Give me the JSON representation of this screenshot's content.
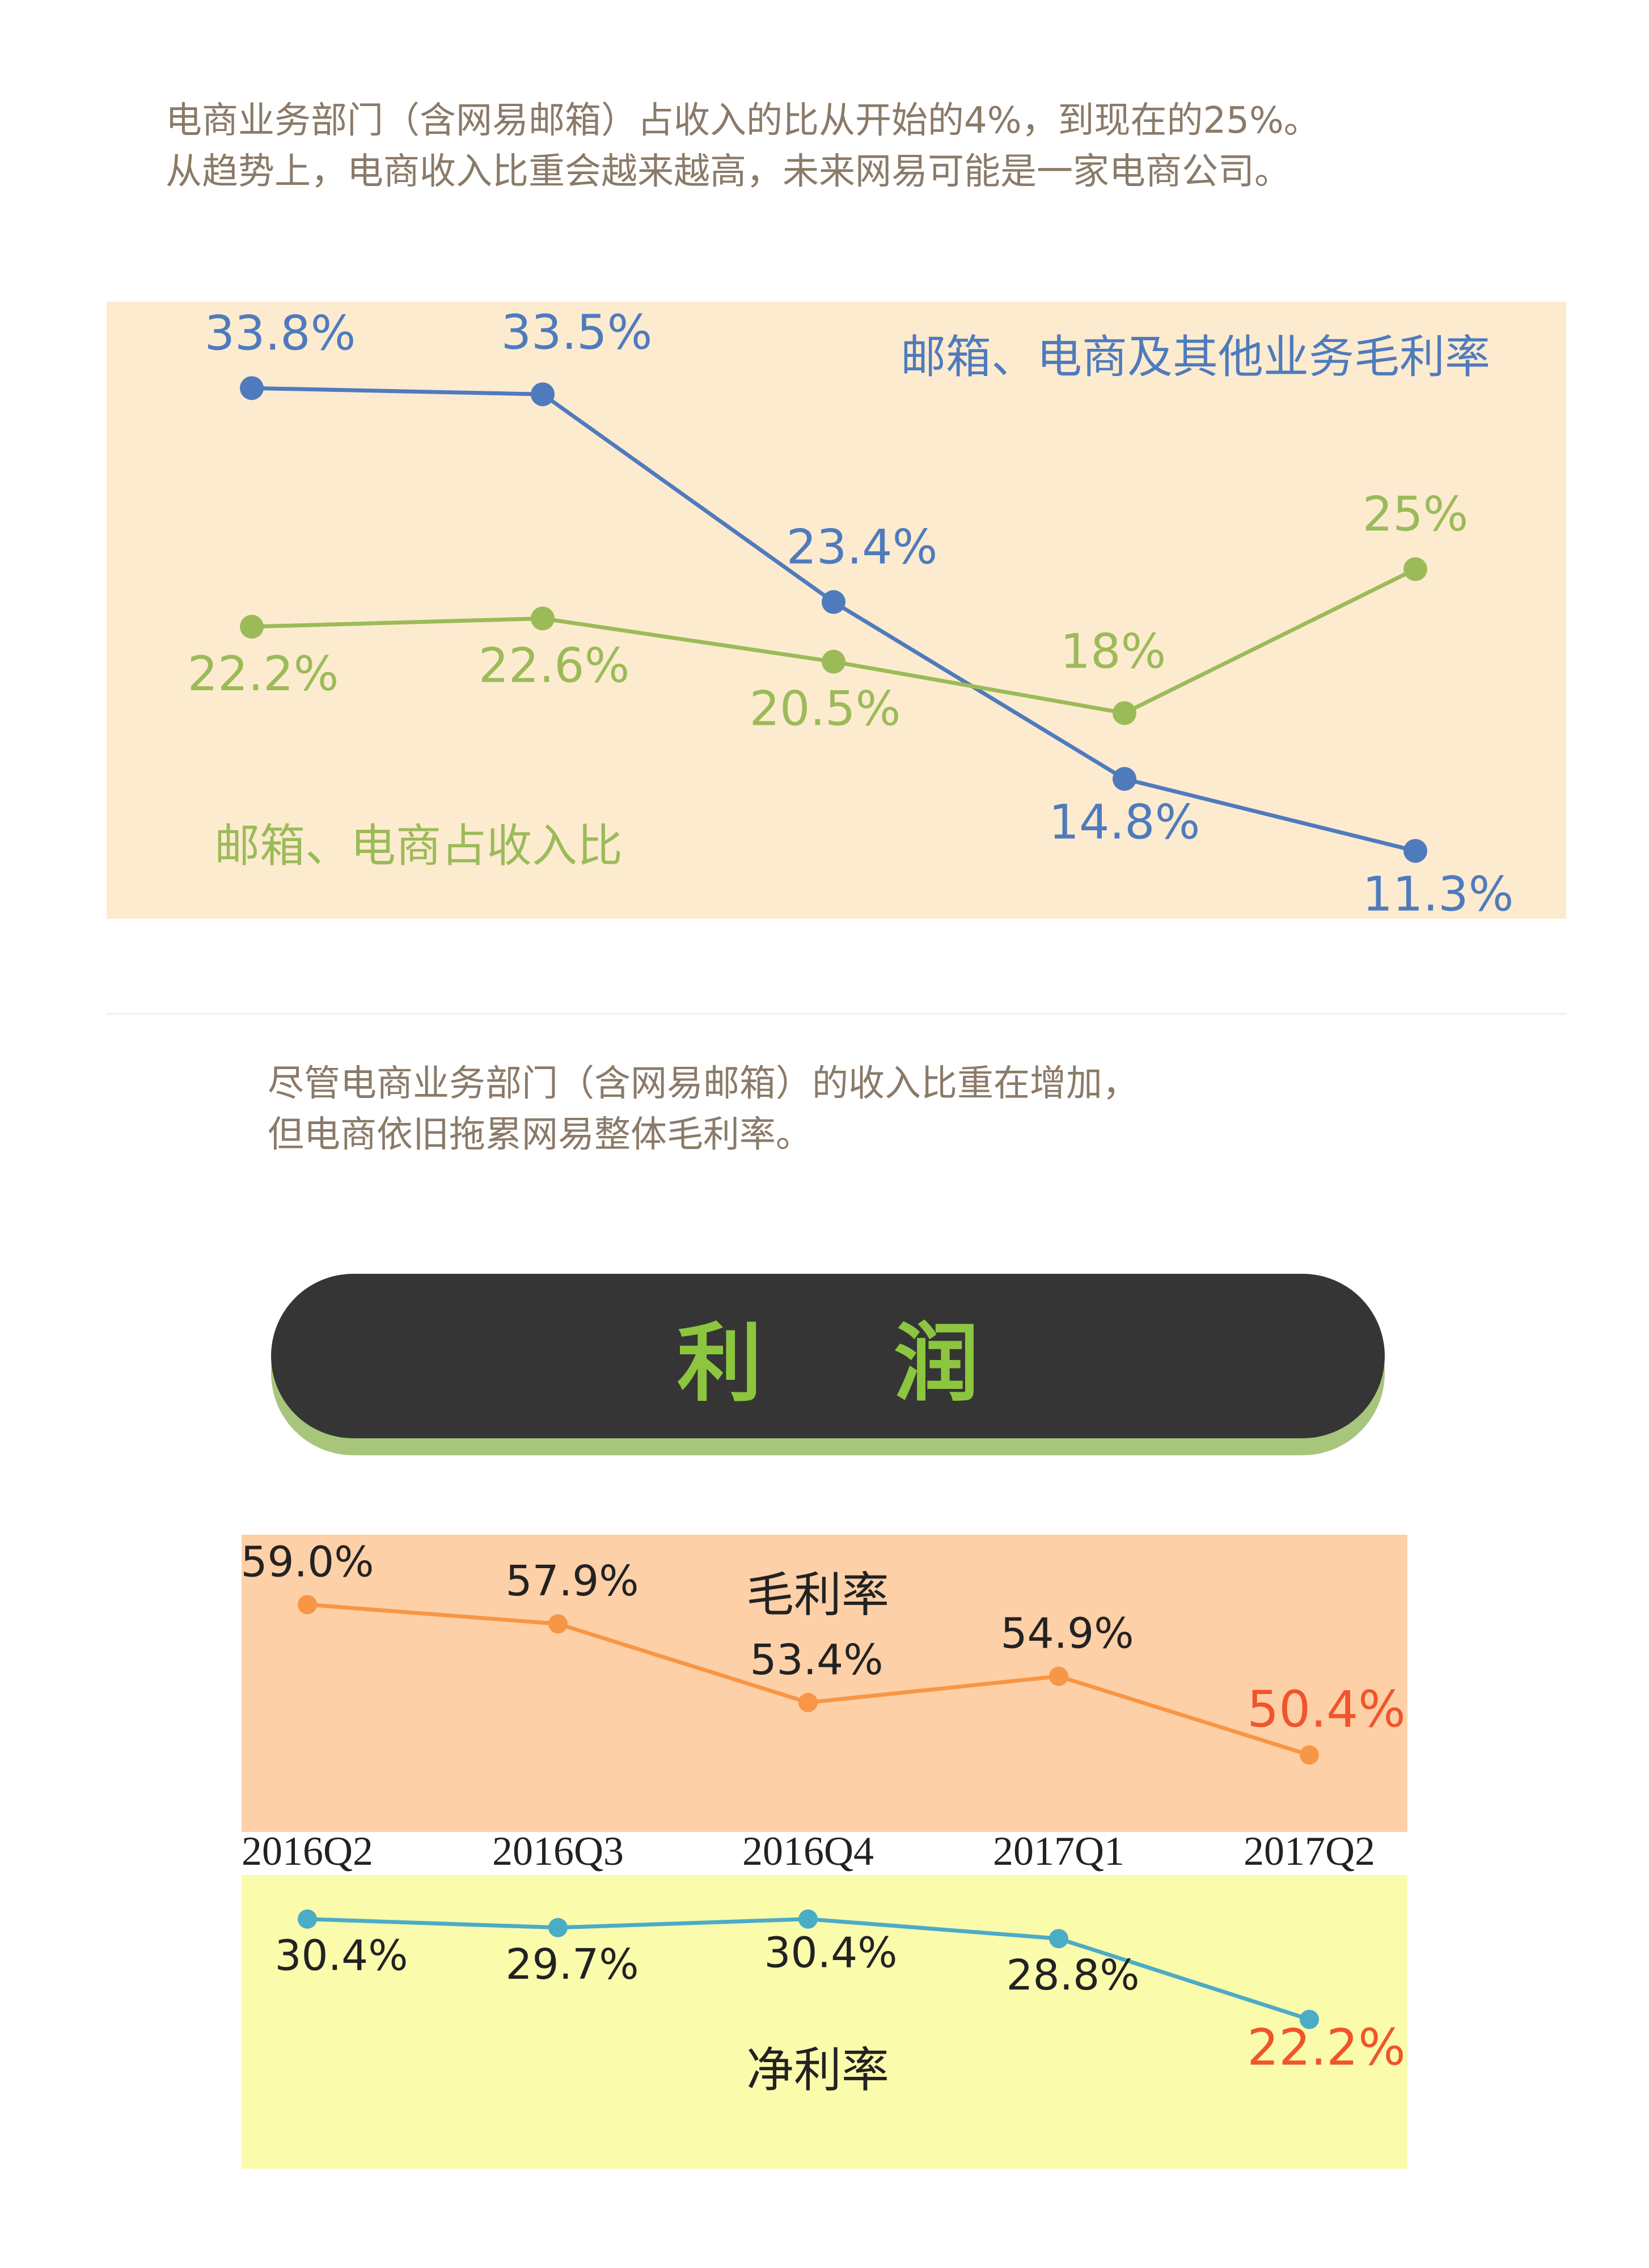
{
  "intro": {
    "line1": "电商业务部门（含网易邮箱）占收入的比从开始的4%，到现在的25%。",
    "line2": "从趋势上，电商收入比重会越来越高，未来网易可能是一家电商公司。"
  },
  "note": {
    "line1": "尽管电商业务部门（含网易邮箱）的收入比重在增加，",
    "line2": "但电商依旧拖累网易整体毛利率。"
  },
  "profit_title": "利 润",
  "colors": {
    "panel1_bg": "#fdebcf",
    "blue": "#4f7bbd",
    "green": "#9bbb59",
    "panel_orange_bg": "#fdd0a7",
    "orange": "#f79646",
    "panel_yellow_bg": "#fbfbac",
    "teal": "#4bacc6",
    "highlight_red": "#f0552a",
    "text_dark": "#222222"
  },
  "chart_data": [
    {
      "type": "line",
      "series": [
        {
          "name": "邮箱、电商及其他业务毛利率",
          "values": [
            33.8,
            33.5,
            23.4,
            14.8,
            11.3
          ],
          "labels": [
            "33.8%",
            "33.5%",
            "23.4%",
            "14.8%",
            "11.3%"
          ]
        },
        {
          "name": "邮箱、电商占收入比",
          "values": [
            22.2,
            22.6,
            20.5,
            18,
            25
          ],
          "labels": [
            "22.2%",
            "22.6%",
            "20.5%",
            "18%",
            "25%"
          ]
        }
      ],
      "ylim": [
        8,
        38
      ]
    },
    {
      "type": "line",
      "categories": [
        "2016Q2",
        "2016Q3",
        "2016Q4",
        "2017Q1",
        "2017Q2"
      ],
      "series": [
        {
          "name": "毛利率",
          "values": [
            59.0,
            57.9,
            53.4,
            54.9,
            50.4
          ],
          "labels": [
            "59.0%",
            "57.9%",
            "53.4%",
            "54.9%",
            "50.4%"
          ]
        },
        {
          "name": "净利率",
          "values": [
            30.4,
            29.7,
            30.4,
            28.8,
            22.2
          ],
          "labels": [
            "30.4%",
            "29.7%",
            "30.4%",
            "28.8%",
            "22.2%"
          ]
        }
      ]
    }
  ]
}
